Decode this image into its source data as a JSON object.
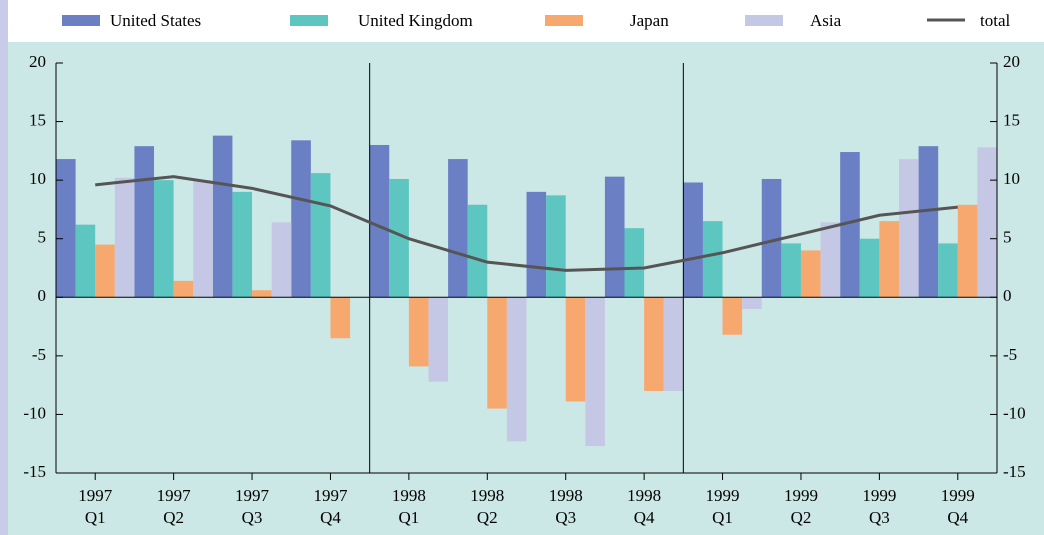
{
  "chart_data": {
    "type": "bar",
    "categories": [
      [
        "1997",
        "Q1"
      ],
      [
        "1997",
        "Q2"
      ],
      [
        "1997",
        "Q3"
      ],
      [
        "1997",
        "Q4"
      ],
      [
        "1998",
        "Q1"
      ],
      [
        "1998",
        "Q2"
      ],
      [
        "1998",
        "Q3"
      ],
      [
        "1998",
        "Q4"
      ],
      [
        "1999",
        "Q1"
      ],
      [
        "1999",
        "Q2"
      ],
      [
        "1999",
        "Q3"
      ],
      [
        "1999",
        "Q4"
      ]
    ],
    "series": [
      {
        "name": "United States",
        "color": "#6b7fc4",
        "values": [
          11.8,
          12.9,
          13.8,
          13.4,
          13.0,
          11.8,
          9.0,
          10.3,
          9.8,
          10.1,
          12.4,
          12.9
        ]
      },
      {
        "name": "United Kingdom",
        "color": "#5ec6c0",
        "values": [
          6.2,
          10.0,
          9.0,
          10.6,
          10.1,
          7.9,
          8.7,
          5.9,
          6.5,
          4.6,
          5.0,
          4.6
        ]
      },
      {
        "name": "Japan",
        "color": "#f7a86e",
        "values": [
          4.5,
          1.4,
          0.6,
          -3.5,
          -5.9,
          -9.5,
          -8.9,
          -8.0,
          -3.2,
          4.0,
          6.5,
          7.9
        ]
      },
      {
        "name": "Asia",
        "color": "#c5c8e4",
        "values": [
          10.2,
          10.0,
          6.4,
          0,
          -7.2,
          -12.3,
          -12.7,
          -8.0,
          -1.0,
          6.4,
          11.8,
          12.8
        ]
      },
      {
        "name": "total",
        "type": "line",
        "color": "#555555",
        "values": [
          9.6,
          10.3,
          9.3,
          7.8,
          5.0,
          3.0,
          2.3,
          2.5,
          3.8,
          5.4,
          7.0,
          7.7
        ]
      }
    ],
    "ylim": [
      -15,
      20
    ],
    "yticks": [
      -15,
      -10,
      -5,
      0,
      5,
      10,
      15,
      20
    ],
    "y2lim": [
      -15,
      20
    ],
    "y2ticks": [
      -15,
      -10,
      -5,
      0,
      5,
      10,
      15,
      20
    ],
    "legend": "top"
  }
}
